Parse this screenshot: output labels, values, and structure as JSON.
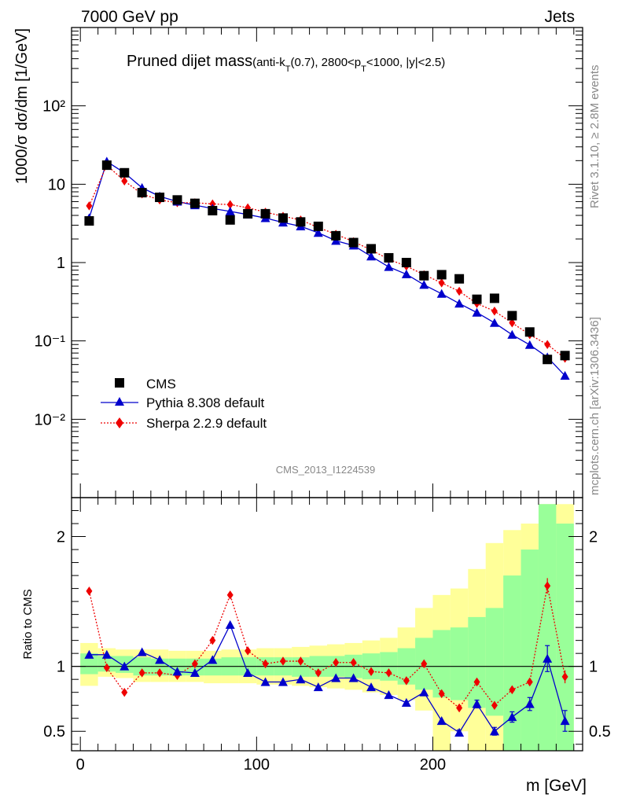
{
  "header": {
    "left": "7000 GeV pp",
    "right": "Jets"
  },
  "plot_title_main": "Pruned dijet mass",
  "plot_title_sub_parts": [
    "(anti-k",
    "T",
    "(0.7), 2800<p",
    "T",
    "<1000, |y|<2.5)"
  ],
  "side_labels": {
    "rivet": "Rivet 3.1.10, ≥ 2.8M events",
    "mcplots": "mcplots.cern.ch [arXiv:1306.3436]"
  },
  "watermark": "CMS_2013_I1224539",
  "colors": {
    "cms": "#000000",
    "pythia": "#0000cc",
    "sherpa": "#ee0000",
    "band_inner": "#99ff99",
    "band_outer": "#ffff99"
  },
  "chart_data": [
    {
      "type": "line",
      "panel": "main",
      "ylabel": "1000/σ dσ/dm [1/GeV]",
      "yscale": "log",
      "ylim": [
        0.001,
        1000
      ],
      "xlim": [
        -5,
        285
      ],
      "ytick_labels": [
        "10⁻²",
        "10⁻¹",
        "1",
        "10",
        "10²"
      ],
      "x": [
        5,
        15,
        25,
        35,
        45,
        55,
        65,
        75,
        85,
        95,
        105,
        115,
        125,
        135,
        145,
        155,
        165,
        175,
        185,
        195,
        205,
        215,
        225,
        235,
        245,
        255,
        265,
        275
      ],
      "series": [
        {
          "name": "CMS",
          "marker": "square",
          "values": [
            3.4,
            17.5,
            14.0,
            7.8,
            6.8,
            6.3,
            5.7,
            4.6,
            3.5,
            4.2,
            4.2,
            3.7,
            3.3,
            2.9,
            2.2,
            1.8,
            1.5,
            1.15,
            1.0,
            0.68,
            0.7,
            0.62,
            0.34,
            0.35,
            0.21,
            0.13,
            0.058,
            0.065
          ]
        },
        {
          "name": "Pythia 8.308 default",
          "marker": "triangle",
          "values": [
            3.7,
            19.5,
            14.0,
            9.0,
            7.0,
            6.0,
            5.4,
            4.9,
            4.5,
            4.1,
            3.7,
            3.25,
            2.9,
            2.4,
            1.9,
            1.65,
            1.2,
            0.88,
            0.71,
            0.52,
            0.4,
            0.3,
            0.23,
            0.17,
            0.12,
            0.089,
            0.062,
            0.036
          ]
        },
        {
          "name": "Sherpa 2.2.9 default",
          "marker": "diamond",
          "line": "dotted",
          "values": [
            5.3,
            17.5,
            11.0,
            7.5,
            6.3,
            5.8,
            5.8,
            5.6,
            5.5,
            5.0,
            4.4,
            3.9,
            3.5,
            2.8,
            2.3,
            1.85,
            1.45,
            1.1,
            0.9,
            0.7,
            0.55,
            0.43,
            0.3,
            0.24,
            0.17,
            0.12,
            0.09,
            0.06
          ]
        }
      ]
    },
    {
      "type": "line",
      "panel": "ratio",
      "ylabel": "Ratio to CMS",
      "xlabel": "m [GeV]",
      "ylim": [
        0.35,
        2.3
      ],
      "xlim": [
        -5,
        285
      ],
      "xtick_labels": [
        "0",
        "100",
        "200"
      ],
      "ytick_labels": [
        "0.5",
        "1",
        "2"
      ],
      "x": [
        5,
        15,
        25,
        35,
        45,
        55,
        65,
        75,
        85,
        95,
        105,
        115,
        125,
        135,
        145,
        155,
        165,
        175,
        185,
        195,
        205,
        215,
        225,
        235,
        245,
        255,
        265,
        275
      ],
      "bin_edges": [
        0,
        10,
        20,
        30,
        40,
        50,
        60,
        70,
        80,
        90,
        100,
        110,
        120,
        130,
        140,
        150,
        160,
        170,
        180,
        190,
        200,
        210,
        220,
        230,
        240,
        250,
        260,
        270,
        280
      ],
      "uncertainty_bands": {
        "inner": [
          [
            0.94,
            1.1
          ],
          [
            0.96,
            1.08
          ],
          [
            0.95,
            1.08
          ],
          [
            0.93,
            1.07
          ],
          [
            0.93,
            1.06
          ],
          [
            0.93,
            1.06
          ],
          [
            0.93,
            1.06
          ],
          [
            0.93,
            1.06
          ],
          [
            0.93,
            1.07
          ],
          [
            0.93,
            1.07
          ],
          [
            0.93,
            1.07
          ],
          [
            0.93,
            1.07
          ],
          [
            0.92,
            1.07
          ],
          [
            0.92,
            1.08
          ],
          [
            0.92,
            1.08
          ],
          [
            0.91,
            1.09
          ],
          [
            0.9,
            1.1
          ],
          [
            0.89,
            1.11
          ],
          [
            0.86,
            1.14
          ],
          [
            0.82,
            1.22
          ],
          [
            0.76,
            1.28
          ],
          [
            0.74,
            1.3
          ],
          [
            0.68,
            1.38
          ],
          [
            0.62,
            1.45
          ],
          [
            0.34,
            1.7
          ],
          [
            0.34,
            1.9
          ],
          [
            0.34,
            2.25
          ],
          [
            0.34,
            2.1
          ]
        ],
        "outer": [
          [
            0.85,
            1.18
          ],
          [
            0.92,
            1.14
          ],
          [
            0.91,
            1.13
          ],
          [
            0.88,
            1.13
          ],
          [
            0.88,
            1.13
          ],
          [
            0.88,
            1.12
          ],
          [
            0.88,
            1.12
          ],
          [
            0.87,
            1.12
          ],
          [
            0.87,
            1.13
          ],
          [
            0.87,
            1.13
          ],
          [
            0.86,
            1.14
          ],
          [
            0.86,
            1.14
          ],
          [
            0.85,
            1.15
          ],
          [
            0.84,
            1.16
          ],
          [
            0.83,
            1.17
          ],
          [
            0.82,
            1.18
          ],
          [
            0.8,
            1.2
          ],
          [
            0.78,
            1.22
          ],
          [
            0.74,
            1.3
          ],
          [
            0.66,
            1.45
          ],
          [
            0.34,
            1.55
          ],
          [
            0.5,
            1.6
          ],
          [
            0.34,
            1.75
          ],
          [
            0.34,
            1.95
          ],
          [
            0.34,
            2.05
          ],
          [
            0.34,
            2.1
          ],
          [
            0.34,
            2.25
          ],
          [
            0.34,
            2.25
          ]
        ]
      },
      "series": [
        {
          "name": "Pythia 8.308 default",
          "marker": "triangle",
          "values": [
            1.09,
            1.09,
            1.0,
            1.11,
            1.05,
            0.96,
            0.95,
            1.05,
            1.32,
            0.95,
            0.88,
            0.88,
            0.9,
            0.84,
            0.91,
            0.91,
            0.84,
            0.78,
            0.72,
            0.8,
            0.58,
            0.49,
            0.71,
            0.5,
            0.61,
            0.71,
            1.06,
            0.58
          ],
          "errors": [
            0,
            0,
            0,
            0,
            0,
            0,
            0,
            0,
            0,
            0,
            0,
            0,
            0,
            0,
            0,
            0,
            0,
            0,
            0,
            0,
            0,
            0.02,
            0.03,
            0.03,
            0.04,
            0.05,
            0.1,
            0.08
          ]
        },
        {
          "name": "Sherpa 2.2.9 default",
          "marker": "diamond",
          "line": "dotted",
          "values": [
            1.58,
            0.99,
            0.8,
            0.95,
            0.95,
            0.93,
            1.02,
            1.2,
            1.55,
            1.12,
            1.02,
            1.04,
            1.04,
            0.95,
            1.03,
            1.03,
            0.96,
            0.95,
            0.89,
            1.02,
            0.79,
            0.68,
            0.88,
            0.7,
            0.82,
            0.88,
            1.62,
            0.92
          ],
          "errors": [
            0,
            0,
            0,
            0,
            0,
            0,
            0,
            0,
            0,
            0,
            0,
            0,
            0,
            0,
            0,
            0,
            0,
            0,
            0,
            0,
            0,
            0,
            0,
            0,
            0,
            0,
            0.06,
            0.05
          ]
        }
      ]
    }
  ]
}
